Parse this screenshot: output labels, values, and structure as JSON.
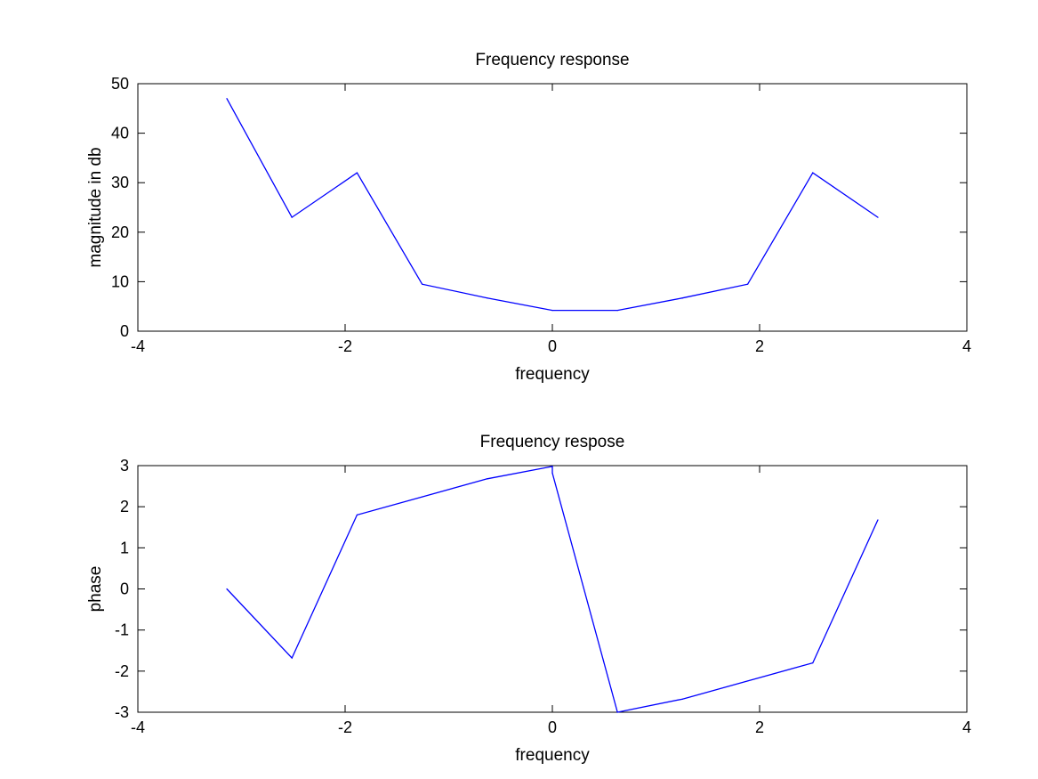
{
  "chart_data": [
    {
      "type": "line",
      "title": "Frequency response",
      "xlabel": "frequency",
      "ylabel": "magnitude in db",
      "xlim": [
        -4,
        4
      ],
      "ylim": [
        0,
        50
      ],
      "xticks": [
        -4,
        -2,
        0,
        2,
        4
      ],
      "yticks": [
        0,
        10,
        20,
        30,
        40,
        50
      ],
      "xtick_labels": [
        "-4",
        "-2",
        "0",
        "2",
        "4"
      ],
      "ytick_labels": [
        "0",
        "10",
        "20",
        "30",
        "40",
        "50"
      ],
      "grid": false,
      "color": "#0000ff",
      "series": [
        {
          "x": [
            -3.1416,
            -2.5133,
            -1.885,
            -1.2566,
            -0.6283,
            0.0,
            0.6283,
            1.2566,
            1.885,
            2.5133,
            3.1416
          ],
          "values": [
            47,
            23,
            32,
            9.5,
            6.7,
            4.2,
            4.2,
            6.7,
            9.5,
            32,
            23
          ]
        }
      ]
    },
    {
      "type": "line",
      "title": "Frequency respose",
      "xlabel": "frequency",
      "ylabel": "phase",
      "xlim": [
        -4,
        4
      ],
      "ylim": [
        -3,
        3
      ],
      "xticks": [
        -4,
        -2,
        0,
        2,
        4
      ],
      "yticks": [
        -3,
        -2,
        -1,
        0,
        1,
        2,
        3
      ],
      "xtick_labels": [
        "-4",
        "-2",
        "0",
        "2",
        "4"
      ],
      "ytick_labels": [
        "-3",
        "-2",
        "-1",
        "0",
        "1",
        "2",
        "3"
      ],
      "grid": false,
      "color": "#0000ff",
      "series": [
        {
          "x": [
            -3.1416,
            -2.5133,
            -1.885,
            -1.2566,
            -0.6283,
            0.0,
            0.0,
            0.6283,
            1.2566,
            1.885,
            2.5133,
            3.1416
          ],
          "values": [
            0.0,
            -1.68,
            1.8,
            2.24,
            2.68,
            2.98,
            2.82,
            -3.0,
            -2.68,
            -2.24,
            -1.8,
            1.68
          ]
        }
      ]
    }
  ]
}
